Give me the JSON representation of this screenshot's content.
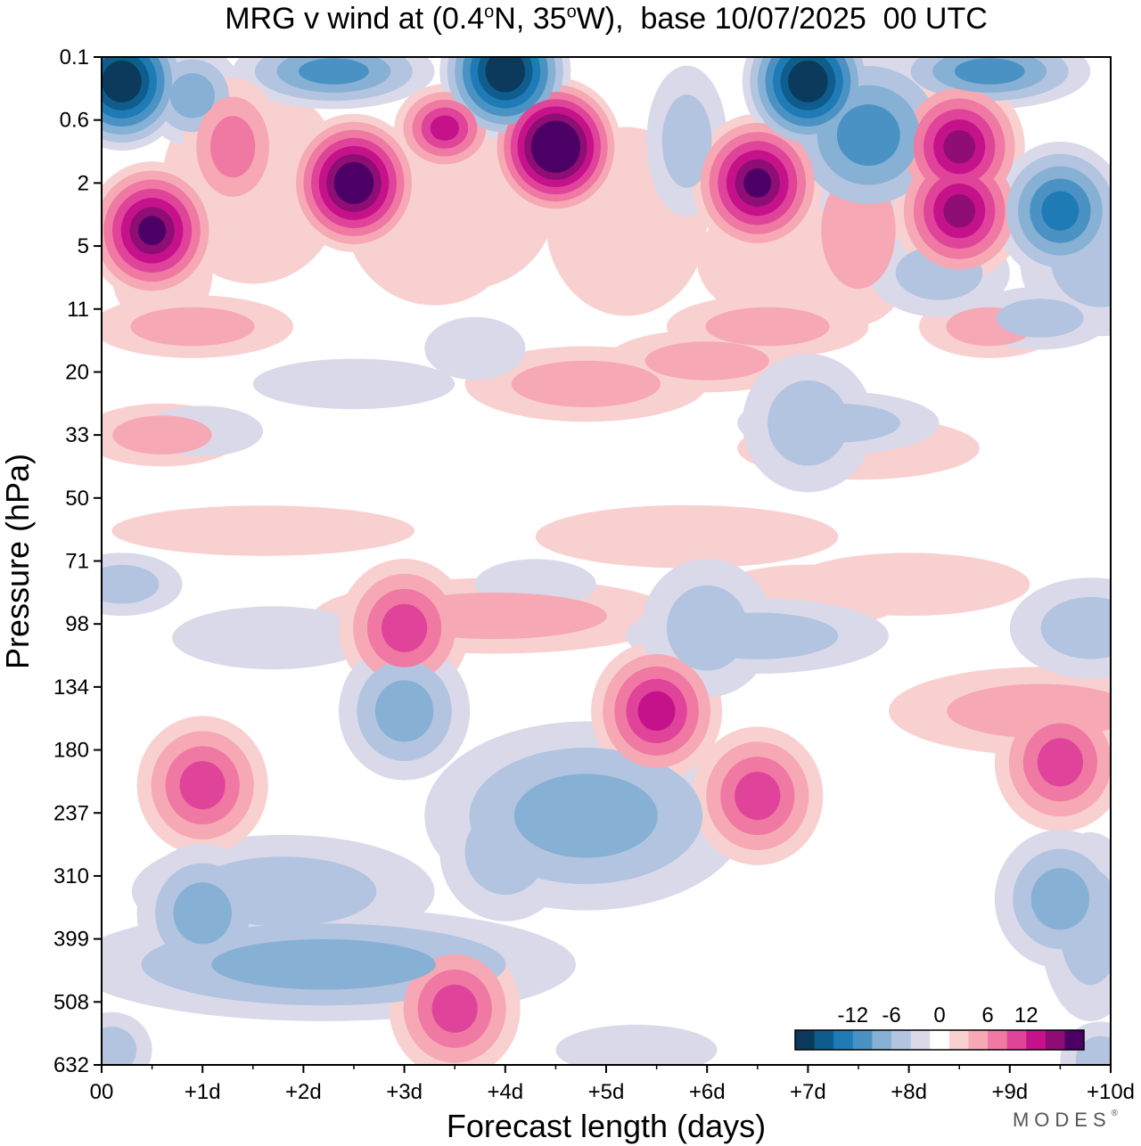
{
  "title_parts": {
    "prefix": "MRG v wind at (0.4",
    "deg1": "o",
    "mid": "N, 35",
    "deg2": "o",
    "suffix": "W),  base 10/07/2025  00 UTC"
  },
  "brand": {
    "name": "MODES",
    "mark": "®"
  },
  "chart_data": {
    "type": "heatmap",
    "title": "MRG v wind at (0.4°N, 35°W),  base 10/07/2025  00 UTC",
    "xlabel": "Forecast length (days)",
    "ylabel": "Pressure (hPa)",
    "x_ticks": [
      "00",
      "+1d",
      "+2d",
      "+3d",
      "+4d",
      "+5d",
      "+6d",
      "+7d",
      "+8d",
      "+9d",
      "+10d"
    ],
    "xlim": [
      0,
      10
    ],
    "y_ticks": [
      "0.1",
      "0.6",
      "2",
      "5",
      "11",
      "20",
      "33",
      "50",
      "71",
      "98",
      "134",
      "180",
      "237",
      "310",
      "399",
      "508",
      "632"
    ],
    "y_axis_note": "pressure levels, top 0.1 hPa to bottom 632 hPa",
    "colorbar": {
      "labels": [
        "-12",
        "-6",
        "0",
        "6",
        "12"
      ],
      "colors": [
        "#0b3a5c",
        "#0f5d8e",
        "#1f7bb6",
        "#4a92c4",
        "#86b0d4",
        "#b2c4df",
        "#d9d9ea",
        "#ffffff",
        "#f9d0d0",
        "#f6a9b5",
        "#ef79a3",
        "#e0439a",
        "#c6128a",
        "#8f0e75",
        "#4c0066"
      ]
    },
    "features": [
      {
        "x": 2.5,
        "y": 2,
        "value": 15
      },
      {
        "x": 0.5,
        "y": 4,
        "value": 14
      },
      {
        "x": 4.5,
        "y": 1,
        "value": 17
      },
      {
        "x": 6.5,
        "y": 2,
        "value": 14
      },
      {
        "x": 8.5,
        "y": 1,
        "value": 12
      },
      {
        "x": 8.5,
        "y": 3,
        "value": 12
      },
      {
        "x": 0.2,
        "y": 0.2,
        "value": -15
      },
      {
        "x": 4.0,
        "y": 0.15,
        "value": -15
      },
      {
        "x": 7.0,
        "y": 0.2,
        "value": -15
      },
      {
        "x": 9.5,
        "y": 3,
        "value": -9
      },
      {
        "x": 5.5,
        "y": 150,
        "value": 10
      },
      {
        "x": 3.0,
        "y": 100,
        "value": 7
      },
      {
        "x": 1.0,
        "y": 210,
        "value": 8
      },
      {
        "x": 9.5,
        "y": 190,
        "value": 8
      },
      {
        "x": 6.5,
        "y": 220,
        "value": 7
      },
      {
        "x": 3.5,
        "y": 520,
        "value": 8
      },
      {
        "x": 1.0,
        "y": 360,
        "value": -6
      },
      {
        "x": 3.0,
        "y": 150,
        "value": -5
      },
      {
        "x": 4.0,
        "y": 280,
        "value": -4
      },
      {
        "x": 9.5,
        "y": 340,
        "value": -5
      },
      {
        "x": 7.0,
        "y": 30,
        "value": -4
      },
      {
        "x": 6.0,
        "y": 100,
        "value": -3
      }
    ]
  }
}
